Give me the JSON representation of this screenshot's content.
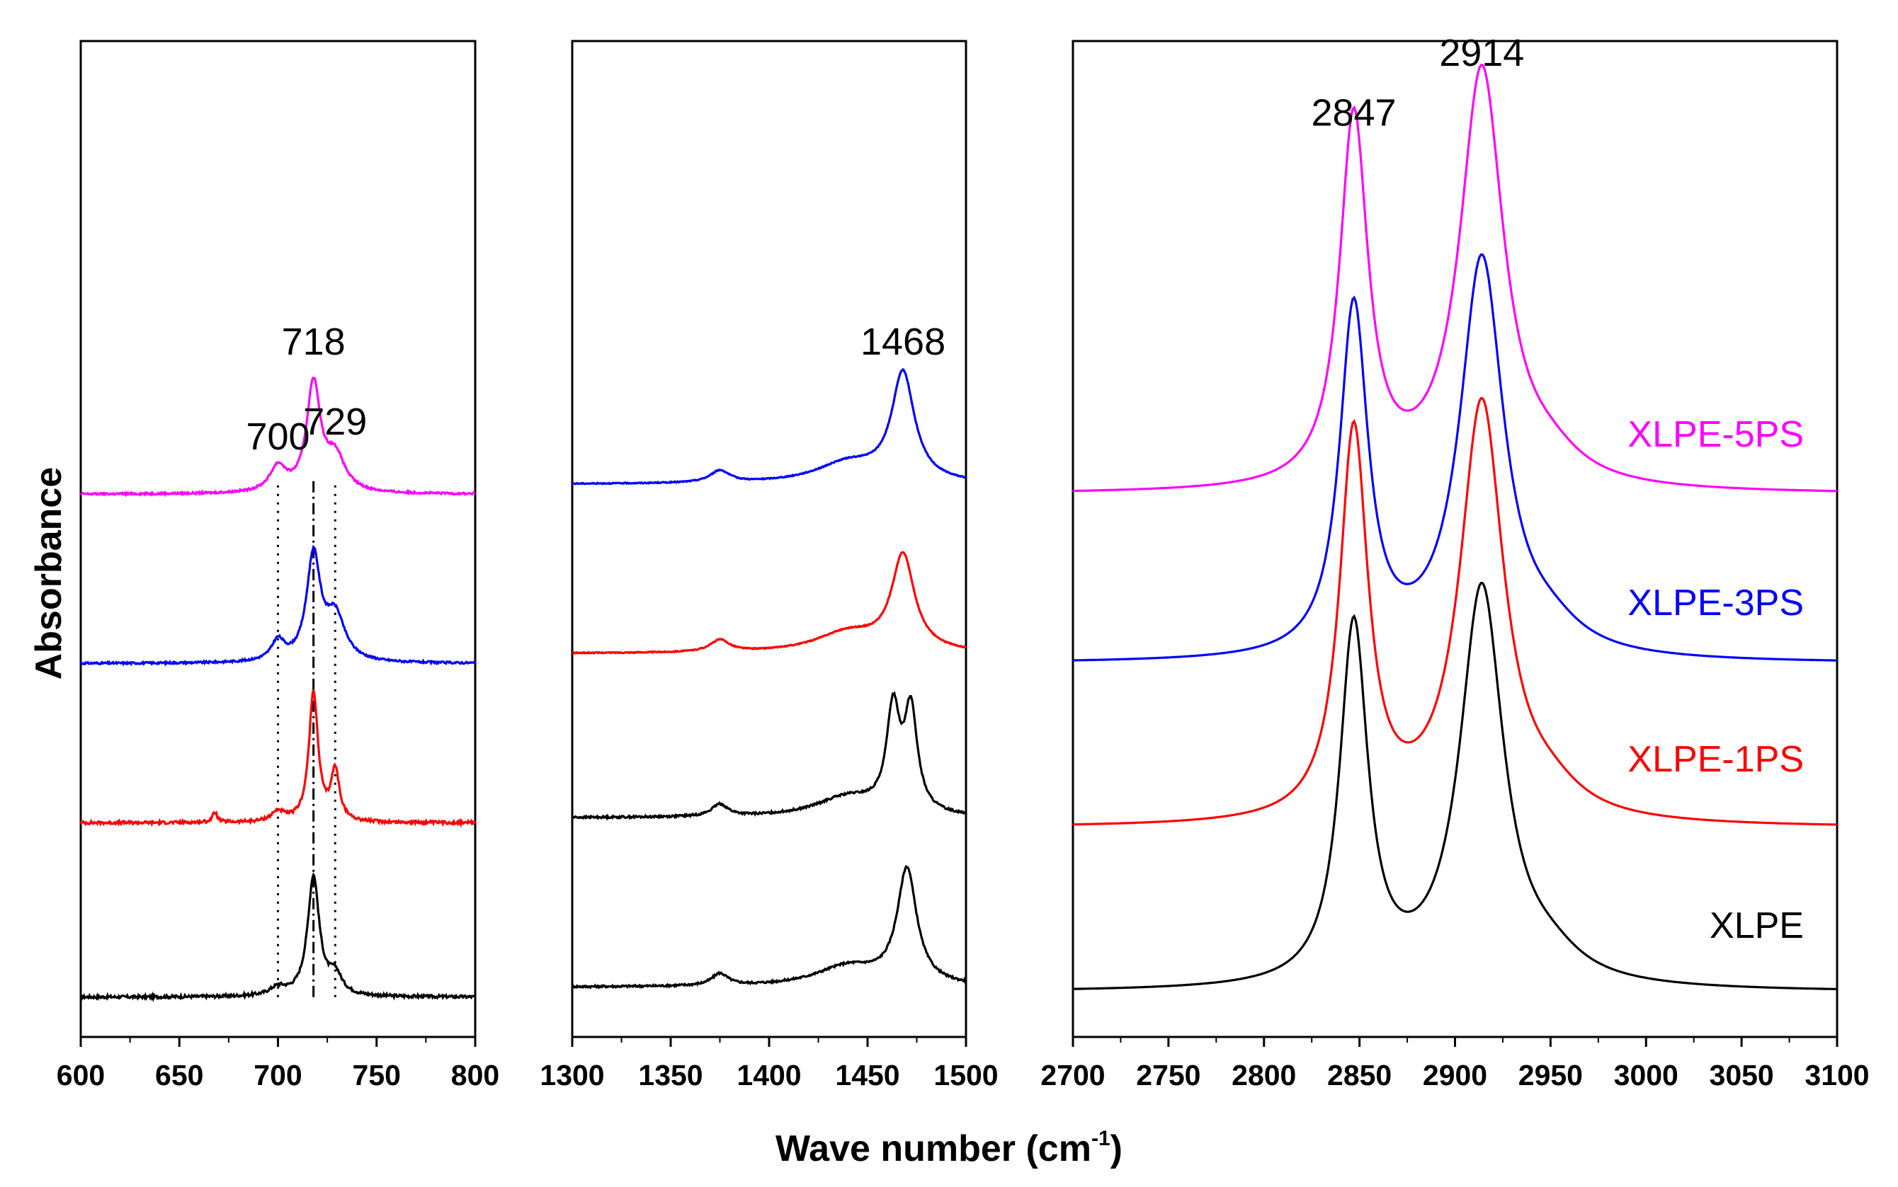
{
  "chart_data": {
    "type": "line",
    "xlabel": "Wave number (cm",
    "xlabel_sup": "-1",
    "xlabel_end": ")",
    "ylabel": "Absorbance",
    "yticks_shown": false,
    "series_styles": [
      {
        "name": "XLPE",
        "color": "#000000"
      },
      {
        "name": "XLPE-1PS",
        "color": "#ff0000"
      },
      {
        "name": "XLPE-3PS",
        "color": "#0000ff"
      },
      {
        "name": "XLPE-5PS",
        "color": "#ff00ff"
      }
    ],
    "panels": [
      {
        "id": "p1",
        "xlim": [
          600,
          800
        ],
        "xticks": [
          "600",
          "650",
          "700",
          "750",
          "800"
        ],
        "xtick_values": [
          600,
          650,
          700,
          750,
          800
        ],
        "ylim": [
          0,
          1
        ],
        "series": [
          {
            "name": "XLPE",
            "color": "#000000",
            "baseline": 0.04,
            "noise": 0.003,
            "peaks": [
              [
                700,
                0.008,
                5
              ],
              [
                718,
                0.12,
                3.6
              ],
              [
                729,
                0.02,
                4
              ]
            ]
          },
          {
            "name": "XLPE-1PS",
            "color": "#ff0000",
            "baseline": 0.215,
            "noise": 0.003,
            "peaks": [
              [
                668,
                0.01,
                1.5
              ],
              [
                700,
                0.01,
                4
              ],
              [
                718,
                0.13,
                2.8
              ],
              [
                729,
                0.05,
                2.6
              ]
            ]
          },
          {
            "name": "XLPE-3PS",
            "color": "#0000ff",
            "baseline": 0.375,
            "noise": 0.002,
            "peaks": [
              [
                700,
                0.02,
                4
              ],
              [
                718,
                0.105,
                4.2
              ],
              [
                729,
                0.045,
                6
              ]
            ]
          },
          {
            "name": "XLPE-5PS",
            "color": "#ff00ff",
            "baseline": 0.545,
            "noise": 0.002,
            "peaks": [
              [
                700,
                0.025,
                5
              ],
              [
                718,
                0.108,
                4.2
              ],
              [
                729,
                0.035,
                6
              ]
            ]
          }
        ],
        "vlines": [
          {
            "x": 700,
            "style": "dotted"
          },
          {
            "x": 718,
            "style": "dashdot"
          },
          {
            "x": 729,
            "style": "dotted"
          }
        ],
        "annotations": [
          {
            "text": "718",
            "x": 718,
            "y": 0.685
          },
          {
            "text": "700",
            "x": 700,
            "y": 0.59
          },
          {
            "text": "729",
            "x": 729,
            "y": 0.605
          }
        ]
      },
      {
        "id": "p2",
        "xlim": [
          1300,
          1500
        ],
        "xticks": [
          "1300",
          "1350",
          "1400",
          "1450",
          "1500"
        ],
        "xtick_values": [
          1300,
          1350,
          1400,
          1450,
          1500
        ],
        "ylim": [
          0,
          1
        ],
        "series": [
          {
            "name": "XLPE",
            "color": "#000000",
            "baseline": 0.05,
            "noise": 0.002,
            "peaks": [
              [
                1375,
                0.012,
                5
              ],
              [
                1440,
                0.02,
                20
              ],
              [
                1470,
                0.115,
                6
              ]
            ]
          },
          {
            "name": "XLPE-1PS",
            "color": "#000000",
            "baseline": 0.22,
            "noise": 0.002,
            "peaks": [
              [
                1375,
                0.012,
                5
              ],
              [
                1440,
                0.02,
                20
              ],
              [
                1463,
                0.1,
                4
              ],
              [
                1472,
                0.1,
                4
              ]
            ]
          },
          {
            "name": "XLPE-3PS",
            "color": "#ff0000",
            "baseline": 0.385,
            "noise": 0.001,
            "peaks": [
              [
                1375,
                0.012,
                6
              ],
              [
                1440,
                0.02,
                20
              ],
              [
                1468,
                0.095,
                7
              ]
            ]
          },
          {
            "name": "XLPE-5PS",
            "color": "#0000ff",
            "baseline": 0.555,
            "noise": 0.001,
            "peaks": [
              [
                1375,
                0.012,
                6
              ],
              [
                1440,
                0.02,
                20
              ],
              [
                1468,
                0.108,
                7
              ]
            ]
          }
        ],
        "annotations": [
          {
            "text": "1468",
            "x": 1468,
            "y": 0.685
          }
        ]
      },
      {
        "id": "p3",
        "xlim": [
          2700,
          3100
        ],
        "xticks": [
          "2700",
          "2750",
          "2800",
          "2850",
          "2900",
          "2950",
          "3000",
          "3050",
          "3100"
        ],
        "xtick_values": [
          2700,
          2750,
          2800,
          2850,
          2900,
          2950,
          3000,
          3050,
          3100
        ],
        "ylim": [
          0,
          1
        ],
        "series": [
          {
            "name": "XLPE",
            "color": "#000000",
            "baseline": 0.045,
            "noise": 0.0,
            "peaks": [
              [
                2847,
                0.36,
                9
              ],
              [
                2914,
                0.4,
                14
              ],
              [
                2950,
                0.02,
                20
              ]
            ]
          },
          {
            "name": "XLPE-1PS",
            "color": "#ff0000",
            "baseline": 0.21,
            "noise": 0.0,
            "peaks": [
              [
                2847,
                0.39,
                9
              ],
              [
                2914,
                0.42,
                14
              ],
              [
                2950,
                0.02,
                20
              ]
            ]
          },
          {
            "name": "XLPE-3PS",
            "color": "#0000ff",
            "baseline": 0.375,
            "noise": 0.0,
            "peaks": [
              [
                2847,
                0.35,
                9
              ],
              [
                2914,
                0.4,
                14
              ],
              [
                2950,
                0.02,
                20
              ]
            ]
          },
          {
            "name": "XLPE-5PS",
            "color": "#ff00ff",
            "baseline": 0.545,
            "noise": 0.0,
            "peaks": [
              [
                2847,
                0.37,
                9
              ],
              [
                2914,
                0.42,
                14
              ],
              [
                2950,
                0.02,
                20
              ]
            ]
          }
        ],
        "legend_labels": [
          {
            "text": "XLPE-5PS",
            "color": "#ff00ff"
          },
          {
            "text": "XLPE-3PS",
            "color": "#0000ff"
          },
          {
            "text": "XLPE-1PS",
            "color": "#ff0000"
          },
          {
            "text": "XLPE",
            "color": "#000000"
          }
        ],
        "annotations": [
          {
            "text": "2847",
            "x": 2847,
            "y": 0.915
          },
          {
            "text": "2914",
            "x": 2914,
            "y": 0.975
          }
        ]
      }
    ]
  }
}
